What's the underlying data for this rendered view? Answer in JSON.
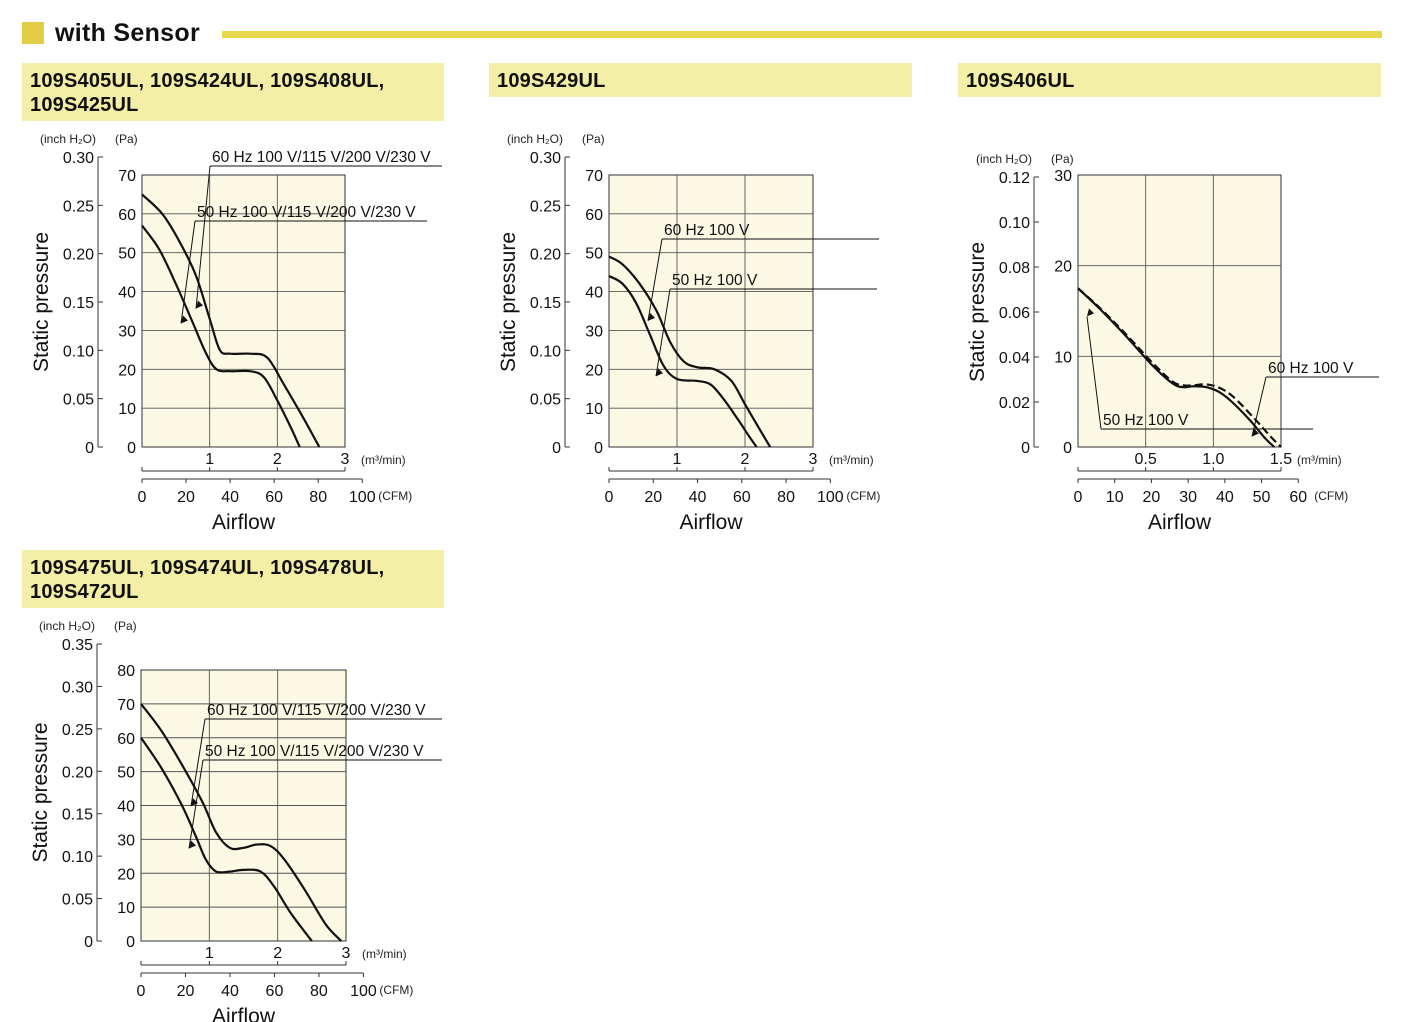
{
  "section": {
    "title": "with Sensor",
    "accent_color": "#e2cd45"
  },
  "header_color": "#f4efa6",
  "plot_bg": "#fbf8e4",
  "chart_data": [
    {
      "title": "109S405UL, 109S424UL, 109S408UL,\n109S425UL",
      "type": "line",
      "xlabel": "Airflow",
      "ylabel": "Static pressure",
      "left_unit": "(inch H₂O)",
      "right_unit": "(Pa)",
      "x_unit": "(m³/min)",
      "x2_unit": "(CFM)",
      "xlim": [
        0,
        3
      ],
      "ylim": [
        0,
        70
      ],
      "x_ticks": [
        "1",
        "2",
        "3"
      ],
      "pa_ticks": [
        "0",
        "10",
        "20",
        "30",
        "40",
        "50",
        "60",
        "70"
      ],
      "inch_ticks": [
        "0",
        "0.05",
        "0.10",
        "0.15",
        "0.20",
        "0.25",
        "0.30"
      ],
      "inch_max": 0.3,
      "cfm_ticks": [
        "0",
        "20",
        "40",
        "60",
        "80",
        "100"
      ],
      "series": [
        {
          "name": "60 Hz 100 V/115 V/200 V/230 V",
          "dashed": false,
          "x": [
            0,
            0.3,
            0.55,
            0.8,
            1.0,
            1.15,
            1.3,
            1.6,
            1.85,
            2.1,
            2.4,
            2.62
          ],
          "y": [
            65,
            60,
            53,
            44,
            33,
            25,
            24,
            24,
            23,
            16,
            7,
            0
          ]
        },
        {
          "name": "50 Hz 100 V/115 V/200 V/230 V",
          "dashed": false,
          "x": [
            0,
            0.25,
            0.5,
            0.75,
            0.95,
            1.1,
            1.3,
            1.6,
            1.8,
            2.0,
            2.2,
            2.33
          ],
          "y": [
            57,
            51,
            42,
            32,
            24,
            20,
            19.5,
            19.5,
            18,
            12,
            5,
            0
          ]
        }
      ]
    },
    {
      "title": "109S429UL",
      "type": "line",
      "xlabel": "Airflow",
      "ylabel": "Static pressure",
      "left_unit": "(inch H₂O)",
      "right_unit": "(Pa)",
      "x_unit": "(m³/min)",
      "x2_unit": "(CFM)",
      "xlim": [
        0,
        3
      ],
      "ylim": [
        0,
        70
      ],
      "x_ticks": [
        "1",
        "2",
        "3"
      ],
      "pa_ticks": [
        "0",
        "10",
        "20",
        "30",
        "40",
        "50",
        "60",
        "70"
      ],
      "inch_ticks": [
        "0",
        "0.05",
        "0.10",
        "0.15",
        "0.20",
        "0.25",
        "0.30"
      ],
      "inch_max": 0.3,
      "cfm_ticks": [
        "0",
        "20",
        "40",
        "60",
        "80",
        "100"
      ],
      "series": [
        {
          "name": "60 Hz 100 V",
          "dashed": false,
          "x": [
            0,
            0.2,
            0.45,
            0.7,
            0.9,
            1.1,
            1.3,
            1.55,
            1.8,
            2.0,
            2.2,
            2.37
          ],
          "y": [
            49,
            47,
            42,
            35,
            27,
            22,
            20.5,
            20,
            17,
            11,
            5,
            0
          ]
        },
        {
          "name": "50 Hz 100 V",
          "dashed": false,
          "x": [
            0,
            0.2,
            0.4,
            0.6,
            0.8,
            1.0,
            1.3,
            1.5,
            1.7,
            1.9,
            2.05,
            2.17
          ],
          "y": [
            44,
            42,
            37,
            29,
            21,
            17.5,
            17,
            16,
            12,
            7,
            3,
            0
          ]
        }
      ]
    },
    {
      "title": "109S406UL",
      "type": "line",
      "xlabel": "Airflow",
      "ylabel": "Static pressure",
      "left_unit": "(inch H₂O)",
      "right_unit": "(Pa)",
      "x_unit": "(m³/min)",
      "x2_unit": "(CFM)",
      "xlim": [
        0,
        1.5
      ],
      "ylim": [
        0,
        30
      ],
      "x_ticks": [
        "0.5",
        "1.0",
        "1.5"
      ],
      "pa_ticks": [
        "0",
        "10",
        "20",
        "30"
      ],
      "inch_ticks": [
        "0",
        "0.02",
        "0.04",
        "0.06",
        "0.08",
        "0.10",
        "0.12"
      ],
      "inch_max": 0.12,
      "cfm_ticks": [
        "0",
        "10",
        "20",
        "30",
        "40",
        "50",
        "60"
      ],
      "series": [
        {
          "name": "60 Hz 100 V",
          "dashed": true,
          "x": [
            0,
            0.15,
            0.35,
            0.55,
            0.7,
            0.78,
            0.85,
            0.95,
            1.05,
            1.15,
            1.3,
            1.42,
            1.5
          ],
          "y": [
            17.5,
            15.5,
            12.5,
            9.3,
            7.2,
            6.8,
            6.8,
            6.9,
            6.5,
            5.5,
            3.2,
            1.2,
            0
          ]
        },
        {
          "name": "50 Hz 100 V",
          "dashed": false,
          "x": [
            0,
            0.15,
            0.35,
            0.55,
            0.7,
            0.78,
            0.85,
            0.95,
            1.05,
            1.15,
            1.28,
            1.38,
            1.45
          ],
          "y": [
            17.5,
            15.4,
            12.3,
            9.0,
            7.0,
            6.6,
            6.7,
            6.6,
            6.0,
            4.8,
            2.8,
            1.0,
            0
          ]
        }
      ]
    },
    {
      "title": "109S475UL, 109S474UL, 109S478UL,\n109S472UL",
      "type": "line",
      "xlabel": "Airflow",
      "ylabel": "Static pressure",
      "left_unit": "(inch H₂O)",
      "right_unit": "(Pa)",
      "x_unit": "(m³/min)",
      "x2_unit": "(CFM)",
      "xlim": [
        0,
        3
      ],
      "ylim": [
        0,
        80
      ],
      "x_ticks": [
        "1",
        "2",
        "3"
      ],
      "pa_ticks": [
        "0",
        "10",
        "20",
        "30",
        "40",
        "50",
        "60",
        "70",
        "80"
      ],
      "inch_ticks": [
        "0",
        "0.05",
        "0.10",
        "0.15",
        "0.20",
        "0.25",
        "0.30",
        "0.35"
      ],
      "inch_max": 0.35,
      "cfm_ticks": [
        "0",
        "20",
        "40",
        "60",
        "80",
        "100"
      ],
      "series": [
        {
          "name": "60 Hz 100 V/115 V/200 V/230 V",
          "dashed": false,
          "x": [
            0,
            0.3,
            0.6,
            0.9,
            1.1,
            1.3,
            1.5,
            1.7,
            1.9,
            2.1,
            2.4,
            2.7,
            2.93
          ],
          "y": [
            70,
            62,
            52,
            41,
            32,
            27.5,
            27.5,
            28.5,
            28,
            24,
            15,
            5,
            0
          ]
        },
        {
          "name": "50 Hz 100 V/115 V/200 V/230 V",
          "dashed": false,
          "x": [
            0,
            0.3,
            0.6,
            0.8,
            0.95,
            1.1,
            1.3,
            1.5,
            1.75,
            1.95,
            2.2,
            2.5
          ],
          "y": [
            60,
            51,
            40,
            31,
            24,
            20.5,
            20.5,
            21,
            20.5,
            16,
            8,
            0
          ]
        }
      ]
    }
  ]
}
